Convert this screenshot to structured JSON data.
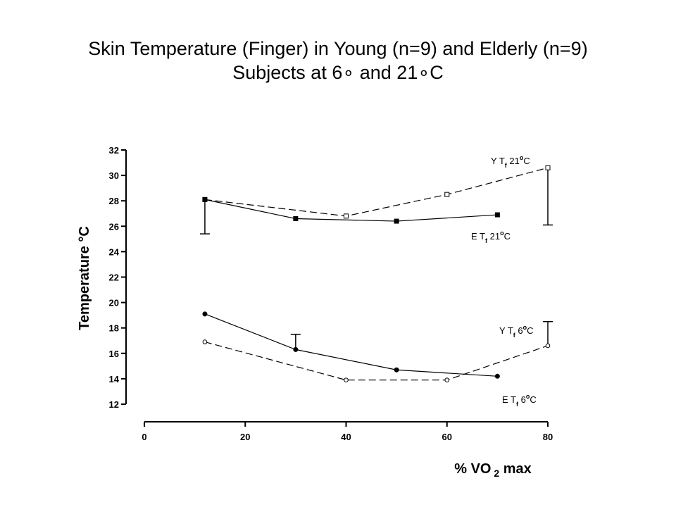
{
  "title_line1": "Skin Temperature (Finger) in Young (n=9) and Elderly (n=9)",
  "title_line2": "Subjects at 6∘ and 21∘C",
  "chart_data": {
    "type": "line",
    "title": "Skin Temperature (Finger) in Young (n=9) and Elderly (n=9) Subjects at 6∘ and 21∘C",
    "ylabel": "Temperature °C",
    "xlabel": "% VO 2 max",
    "xlim": [
      0,
      80
    ],
    "ylim": [
      12,
      32
    ],
    "x_ticks": [
      "0",
      "20",
      "40",
      "60",
      "80"
    ],
    "y_ticks": [
      "12",
      "14",
      "16",
      "18",
      "20",
      "22",
      "24",
      "26",
      "28",
      "30",
      "32"
    ],
    "grid": false,
    "series": [
      {
        "name": "Y Tf 21°C",
        "label_main": "Y T",
        "label_sub": "f",
        "label_tail": "21",
        "label_deg": "o",
        "label_unit": "C",
        "marker": "open-square",
        "line": "dashed",
        "x": [
          12,
          40,
          60,
          80
        ],
        "y": [
          28.1,
          26.8,
          28.5,
          30.6
        ],
        "error_bar": {
          "x": 80,
          "low": 26.1,
          "high": 30.6
        }
      },
      {
        "name": "E Tf 21°C",
        "label_main": "E T",
        "label_sub": "f",
        "label_tail": "21",
        "label_deg": "o",
        "label_unit": "C",
        "marker": "filled-square",
        "line": "solid",
        "x": [
          12,
          30,
          50,
          70
        ],
        "y": [
          28.1,
          26.6,
          26.4,
          26.9
        ],
        "error_bar": {
          "x": 12,
          "low": 25.4,
          "high": 28.1
        }
      },
      {
        "name": "Y Tf 6°C",
        "label_main": "Y T",
        "label_sub": "f",
        "label_tail": "6",
        "label_deg": "o",
        "label_unit": "C",
        "marker": "filled-circle",
        "line": "solid",
        "x": [
          12,
          30,
          50,
          70
        ],
        "y": [
          19.1,
          16.3,
          14.7,
          14.2
        ],
        "error_bar": {
          "x": 30,
          "low": 16.3,
          "high": 17.5
        }
      },
      {
        "name": "E Tf 6°C",
        "label_main": "E T",
        "label_sub": "f",
        "label_tail": "6",
        "label_deg": "o",
        "label_unit": "C",
        "marker": "open-circle",
        "line": "dashed",
        "x": [
          12,
          40,
          60,
          80
        ],
        "y": [
          16.9,
          13.9,
          13.9,
          16.6
        ],
        "error_bar": {
          "x": 80,
          "low": 16.6,
          "high": 18.5
        }
      }
    ]
  }
}
